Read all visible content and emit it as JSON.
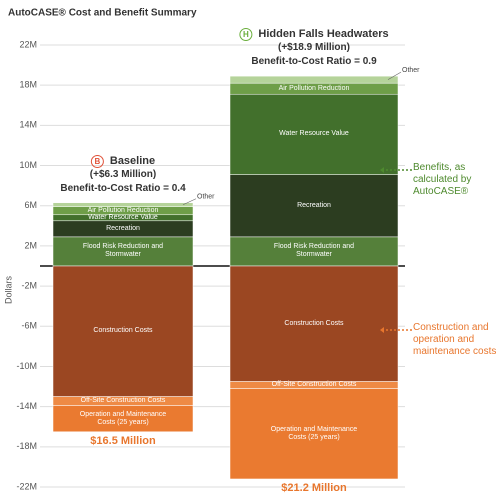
{
  "chart_data": {
    "type": "stacked-bar",
    "title": "AutoCASE® Cost and Benefit Summary",
    "ylabel": "Dollars",
    "categories": [
      "Baseline",
      "Hidden Falls Headwaters"
    ],
    "badges": [
      "B",
      "H"
    ],
    "badge_colors": [
      "#e0533a",
      "#6aae3c"
    ],
    "benefit_labels": [
      "(+$6.3 Million)",
      "(+$18.9 Million)"
    ],
    "ratio_labels": [
      "Benefit-to-Cost Ratio = 0.4",
      "Benefit-to-Cost Ratio = 0.9"
    ],
    "cost_labels": [
      "$16.5 Million",
      "$21.2 Million"
    ],
    "series": [
      {
        "name": "Flood Risk Reduction and Stormwater",
        "color": "#55803a",
        "values": [
          2.9,
          2.9
        ]
      },
      {
        "name": "Recreation",
        "color": "#2c3d20",
        "values": [
          1.6,
          6.2
        ]
      },
      {
        "name": "Water Resource Value",
        "color": "#42702c",
        "values": [
          0.6,
          8.0
        ]
      },
      {
        "name": "Air Pollution Reduction",
        "color": "#6e9e48",
        "values": [
          0.8,
          1.1
        ]
      },
      {
        "name": "Other",
        "color": "#b5d39a",
        "values": [
          0.4,
          0.7
        ]
      },
      {
        "name": "Construction Costs",
        "color": "#9b4722",
        "values": [
          -13.0,
          -11.5
        ]
      },
      {
        "name": "Off-Site Construction Costs",
        "color": "#ee8a45",
        "values": [
          -0.9,
          -0.7
        ]
      },
      {
        "name": "Operation and Maintenance Costs (25 years)",
        "color": "#ea7a30",
        "values": [
          -2.6,
          -9.0
        ]
      }
    ],
    "annotations": [
      {
        "text": "Benefits, as calculated by AutoCASE®",
        "color": "#4e8a2e"
      },
      {
        "text": "Construction and operation and maintenance costs",
        "color": "#e8762d"
      }
    ],
    "ylim": [
      -22,
      22
    ],
    "yticks": [
      {
        "value": 22,
        "label": "22M"
      },
      {
        "value": 18,
        "label": "18M"
      },
      {
        "value": 14,
        "label": "14M"
      },
      {
        "value": 10,
        "label": "10M"
      },
      {
        "value": 6,
        "label": "6M"
      },
      {
        "value": 2,
        "label": "2M"
      },
      {
        "value": -2,
        "label": "-2M"
      },
      {
        "value": -6,
        "label": "-6M"
      },
      {
        "value": -10,
        "label": "-10M"
      },
      {
        "value": -14,
        "label": "-14M"
      },
      {
        "value": -18,
        "label": "-18M"
      },
      {
        "value": -22,
        "label": "-22M"
      }
    ],
    "grid": true
  }
}
